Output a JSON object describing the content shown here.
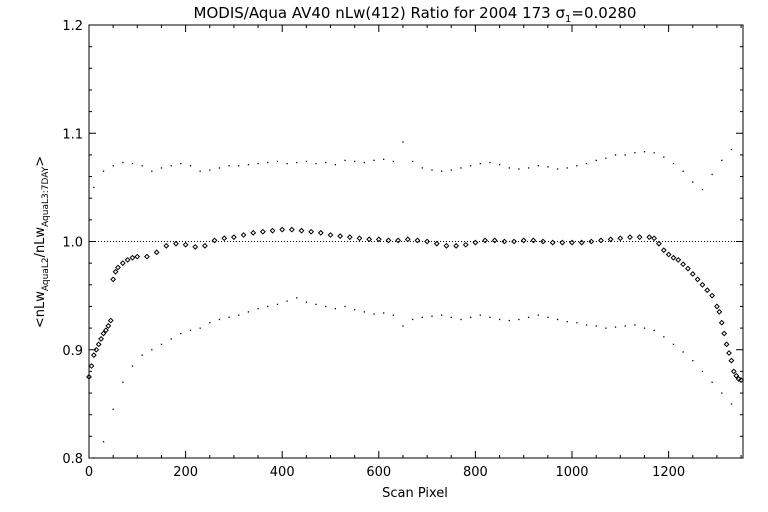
{
  "chart_data": {
    "type": "scatter",
    "title": {
      "text": "MODIS/Aqua AV40 nLw(412) Ratio for 2004 173 ",
      "sigma_symbol": "σ",
      "sigma_subscript": "1",
      "sigma_value": "=0.0280"
    },
    "xlabel": "Scan Pixel",
    "ylabel": {
      "open": "<nLw",
      "sub1": "AquaL2",
      "mid": "/nLw",
      "sub2": "AquaL3:7DAY",
      "close": ">"
    },
    "xlim": [
      0,
      1354
    ],
    "ylim": [
      0.8,
      1.2
    ],
    "x_ticks": [
      0,
      200,
      400,
      600,
      800,
      1000,
      1200
    ],
    "x_tick_labels": [
      "0",
      "200",
      "400",
      "600",
      "800",
      "1000",
      "1200"
    ],
    "y_ticks": [
      0.8,
      0.9,
      1.0,
      1.1,
      1.2
    ],
    "y_tick_labels": [
      "0.8",
      "0.9",
      "1.0",
      "1.1",
      "1.2"
    ],
    "reference_line": 1.0,
    "series": [
      {
        "marker": "diamond",
        "x": [
          0,
          5,
          10,
          15,
          20,
          25,
          30,
          35,
          40,
          45,
          50,
          55,
          60,
          70,
          80,
          90,
          100,
          120,
          140,
          160,
          180,
          200,
          220,
          240,
          260,
          280,
          300,
          320,
          340,
          360,
          380,
          400,
          420,
          440,
          460,
          480,
          500,
          520,
          540,
          560,
          580,
          600,
          620,
          640,
          660,
          680,
          700,
          720,
          740,
          760,
          780,
          800,
          820,
          840,
          860,
          880,
          900,
          920,
          940,
          960,
          980,
          1000,
          1020,
          1040,
          1060,
          1080,
          1100,
          1120,
          1140,
          1160,
          1170,
          1180,
          1190,
          1200,
          1210,
          1220,
          1230,
          1240,
          1250,
          1260,
          1270,
          1280,
          1290,
          1300,
          1305,
          1310,
          1315,
          1320,
          1325,
          1330,
          1335,
          1340,
          1345,
          1350
        ],
        "y": [
          0.875,
          0.885,
          0.895,
          0.9,
          0.905,
          0.91,
          0.915,
          0.918,
          0.922,
          0.927,
          0.965,
          0.972,
          0.976,
          0.98,
          0.983,
          0.985,
          0.986,
          0.986,
          0.99,
          0.996,
          0.998,
          0.997,
          0.995,
          0.996,
          1.001,
          1.003,
          1.004,
          1.006,
          1.008,
          1.009,
          1.01,
          1.011,
          1.011,
          1.01,
          1.009,
          1.008,
          1.006,
          1.005,
          1.004,
          1.003,
          1.002,
          1.002,
          1.001,
          1.001,
          1.002,
          1.001,
          1.0,
          0.998,
          0.996,
          0.996,
          0.997,
          0.999,
          1.001,
          1.001,
          1.0,
          1.0,
          1.001,
          1.001,
          1.0,
          0.999,
          0.999,
          0.999,
          0.999,
          1.0,
          1.001,
          1.002,
          1.003,
          1.004,
          1.004,
          1.004,
          1.003,
          0.998,
          0.992,
          0.988,
          0.985,
          0.983,
          0.979,
          0.975,
          0.97,
          0.965,
          0.96,
          0.955,
          0.95,
          0.94,
          0.935,
          0.925,
          0.915,
          0.905,
          0.897,
          0.89,
          0.88,
          0.876,
          0.873,
          0.872
        ]
      },
      {
        "marker": "dot",
        "x": [
          10,
          30,
          50,
          70,
          90,
          110,
          130,
          150,
          170,
          190,
          210,
          230,
          250,
          270,
          290,
          310,
          330,
          350,
          370,
          390,
          410,
          430,
          450,
          470,
          490,
          510,
          530,
          550,
          570,
          590,
          610,
          630,
          650,
          670,
          690,
          710,
          730,
          750,
          770,
          790,
          810,
          830,
          850,
          870,
          890,
          910,
          930,
          950,
          970,
          990,
          1010,
          1030,
          1050,
          1070,
          1090,
          1110,
          1130,
          1150,
          1170,
          1190,
          1210,
          1230,
          1250,
          1270,
          1290,
          1310,
          1330
        ],
        "y": [
          1.05,
          1.065,
          1.07,
          1.073,
          1.072,
          1.07,
          1.065,
          1.068,
          1.07,
          1.072,
          1.07,
          1.065,
          1.066,
          1.068,
          1.07,
          1.07,
          1.071,
          1.072,
          1.073,
          1.074,
          1.072,
          1.073,
          1.074,
          1.072,
          1.073,
          1.071,
          1.075,
          1.074,
          1.073,
          1.075,
          1.076,
          1.074,
          1.092,
          1.074,
          1.068,
          1.066,
          1.065,
          1.066,
          1.068,
          1.07,
          1.072,
          1.073,
          1.071,
          1.068,
          1.067,
          1.068,
          1.07,
          1.069,
          1.067,
          1.068,
          1.07,
          1.072,
          1.075,
          1.077,
          1.08,
          1.08,
          1.082,
          1.083,
          1.082,
          1.078,
          1.072,
          1.065,
          1.055,
          1.048,
          1.062,
          1.075,
          1.085
        ]
      },
      {
        "marker": "dot",
        "x": [
          10,
          30,
          50,
          70,
          90,
          110,
          130,
          150,
          170,
          190,
          210,
          230,
          250,
          270,
          290,
          310,
          330,
          350,
          370,
          390,
          410,
          430,
          450,
          470,
          490,
          510,
          530,
          550,
          570,
          590,
          610,
          630,
          650,
          670,
          690,
          710,
          730,
          750,
          770,
          790,
          810,
          830,
          850,
          870,
          890,
          910,
          930,
          950,
          970,
          990,
          1010,
          1030,
          1050,
          1070,
          1090,
          1110,
          1130,
          1150,
          1170,
          1190,
          1210,
          1230,
          1250,
          1270,
          1290,
          1310,
          1330
        ],
        "y": [
          0.8,
          0.815,
          0.845,
          0.87,
          0.885,
          0.895,
          0.9,
          0.905,
          0.91,
          0.915,
          0.918,
          0.92,
          0.925,
          0.928,
          0.93,
          0.932,
          0.935,
          0.938,
          0.94,
          0.942,
          0.945,
          0.948,
          0.944,
          0.942,
          0.94,
          0.938,
          0.94,
          0.937,
          0.935,
          0.933,
          0.934,
          0.932,
          0.922,
          0.928,
          0.93,
          0.931,
          0.932,
          0.93,
          0.928,
          0.93,
          0.932,
          0.93,
          0.928,
          0.927,
          0.928,
          0.93,
          0.932,
          0.93,
          0.928,
          0.926,
          0.925,
          0.923,
          0.922,
          0.92,
          0.921,
          0.922,
          0.923,
          0.92,
          0.918,
          0.912,
          0.905,
          0.898,
          0.89,
          0.88,
          0.87,
          0.86,
          0.85
        ]
      }
    ]
  }
}
